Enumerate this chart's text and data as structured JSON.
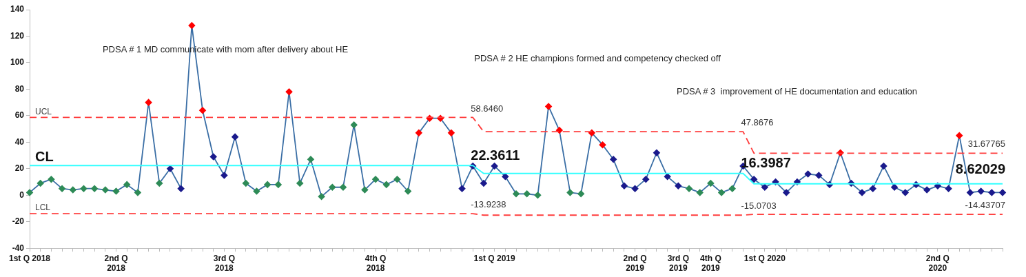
{
  "chart_data": {
    "type": "line",
    "ylim": [
      -40,
      140
    ],
    "yticks": [
      -40,
      -20,
      0,
      20,
      40,
      60,
      80,
      100,
      120,
      140
    ],
    "grid": false,
    "legend": false,
    "marker": "diamond",
    "categories": [
      "1st Q 2018",
      null,
      null,
      null,
      null,
      null,
      null,
      null,
      "2nd Q\n2018",
      null,
      null,
      null,
      null,
      null,
      null,
      null,
      null,
      null,
      "3rd Q\n2018",
      null,
      null,
      null,
      null,
      null,
      null,
      null,
      null,
      null,
      null,
      null,
      null,
      null,
      "4th Q\n2018",
      null,
      null,
      null,
      null,
      null,
      null,
      null,
      null,
      null,
      null,
      "1st Q 2019",
      null,
      null,
      null,
      null,
      null,
      null,
      null,
      null,
      null,
      null,
      null,
      null,
      "2nd Q\n2019",
      null,
      null,
      null,
      "3rd Q\n2019",
      null,
      null,
      "4th Q\n2019",
      null,
      null,
      null,
      null,
      "1st Q 2020",
      null,
      null,
      null,
      null,
      null,
      null,
      null,
      null,
      null,
      null,
      null,
      null,
      null,
      null,
      null,
      "2nd Q\n2020",
      null,
      null,
      null,
      null,
      null,
      null
    ],
    "annotations": [
      "PDSA # 1 MD communicate with mom after delivery about HE",
      "PDSA # 2 HE champions formed and competency checked off",
      "PDSA # 3  improvement of HE documentation and education"
    ],
    "series": [
      {
        "name": "UCL",
        "color": "#ff3b3b",
        "line_style": "dashed",
        "marker": "none",
        "values": [
          58.646,
          58.646,
          58.646,
          58.646,
          58.646,
          58.646,
          58.646,
          58.646,
          58.646,
          58.646,
          58.646,
          58.646,
          58.646,
          58.646,
          58.646,
          58.646,
          58.646,
          58.646,
          58.646,
          58.646,
          58.646,
          58.646,
          58.646,
          58.646,
          58.646,
          58.646,
          58.646,
          58.646,
          58.646,
          58.646,
          58.646,
          58.646,
          58.646,
          58.646,
          58.646,
          58.646,
          58.646,
          58.646,
          58.646,
          58.646,
          58.646,
          58.646,
          47.8676,
          47.8676,
          47.8676,
          47.8676,
          47.8676,
          47.8676,
          47.8676,
          47.8676,
          47.8676,
          47.8676,
          47.8676,
          47.8676,
          47.8676,
          47.8676,
          47.8676,
          47.8676,
          47.8676,
          47.8676,
          47.8676,
          47.8676,
          47.8676,
          47.8676,
          47.8676,
          47.8676,
          47.8676,
          31.67765,
          31.67765,
          31.67765,
          31.67765,
          31.67765,
          31.67765,
          31.67765,
          31.67765,
          31.67765,
          31.67765,
          31.67765,
          31.67765,
          31.67765,
          31.67765,
          31.67765,
          31.67765,
          31.67765,
          31.67765,
          31.67765,
          31.67765,
          31.67765,
          31.67765,
          31.67765,
          31.67765
        ],
        "value_labels": [
          null,
          null,
          null,
          null,
          null,
          null,
          null,
          null,
          null,
          null,
          null,
          null,
          null,
          null,
          null,
          null,
          null,
          null,
          null,
          null,
          null,
          null,
          null,
          null,
          null,
          null,
          null,
          null,
          null,
          null,
          null,
          null,
          null,
          null,
          null,
          null,
          null,
          null,
          null,
          null,
          null,
          "58.6460",
          null,
          null,
          null,
          null,
          null,
          null,
          null,
          null,
          null,
          null,
          null,
          null,
          null,
          null,
          null,
          null,
          null,
          null,
          null,
          null,
          null,
          null,
          null,
          null,
          "47.8676",
          null,
          null,
          null,
          null,
          null,
          null,
          null,
          null,
          null,
          null,
          null,
          null,
          null,
          null,
          null,
          null,
          null,
          null,
          null,
          null,
          null,
          null,
          null,
          "31.67765"
        ]
      },
      {
        "name": "CL",
        "color": "#33ffff",
        "line_style": "solid",
        "marker": "none",
        "values": [
          22.3611,
          22.3611,
          22.3611,
          22.3611,
          22.3611,
          22.3611,
          22.3611,
          22.3611,
          22.3611,
          22.3611,
          22.3611,
          22.3611,
          22.3611,
          22.3611,
          22.3611,
          22.3611,
          22.3611,
          22.3611,
          22.3611,
          22.3611,
          22.3611,
          22.3611,
          22.3611,
          22.3611,
          22.3611,
          22.3611,
          22.3611,
          22.3611,
          22.3611,
          22.3611,
          22.3611,
          22.3611,
          22.3611,
          22.3611,
          22.3611,
          22.3611,
          22.3611,
          22.3611,
          22.3611,
          22.3611,
          22.3611,
          22.3611,
          16.3987,
          16.3987,
          16.3987,
          16.3987,
          16.3987,
          16.3987,
          16.3987,
          16.3987,
          16.3987,
          16.3987,
          16.3987,
          16.3987,
          16.3987,
          16.3987,
          16.3987,
          16.3987,
          16.3987,
          16.3987,
          16.3987,
          16.3987,
          16.3987,
          16.3987,
          16.3987,
          16.3987,
          16.3987,
          8.62029,
          8.62029,
          8.62029,
          8.62029,
          8.62029,
          8.62029,
          8.62029,
          8.62029,
          8.62029,
          8.62029,
          8.62029,
          8.62029,
          8.62029,
          8.62029,
          8.62029,
          8.62029,
          8.62029,
          8.62029,
          8.62029,
          8.62029,
          8.62029,
          8.62029,
          8.62029,
          8.62029
        ],
        "value_labels": [
          null,
          null,
          null,
          null,
          null,
          null,
          null,
          null,
          null,
          null,
          null,
          null,
          null,
          null,
          null,
          null,
          null,
          null,
          null,
          null,
          null,
          null,
          null,
          null,
          null,
          null,
          null,
          null,
          null,
          null,
          null,
          null,
          null,
          null,
          null,
          null,
          null,
          null,
          null,
          null,
          null,
          "22.3611",
          null,
          null,
          null,
          null,
          null,
          null,
          null,
          null,
          null,
          null,
          null,
          null,
          null,
          null,
          null,
          null,
          null,
          null,
          null,
          null,
          null,
          null,
          null,
          null,
          "16.3987",
          null,
          null,
          null,
          null,
          null,
          null,
          null,
          null,
          null,
          null,
          null,
          null,
          null,
          null,
          null,
          null,
          null,
          null,
          null,
          null,
          null,
          null,
          null,
          "8.62029"
        ]
      },
      {
        "name": "LCL",
        "color": "#ff3b3b",
        "line_style": "dashed",
        "marker": "none",
        "values": [
          -13.9238,
          -13.9238,
          -13.9238,
          -13.9238,
          -13.9238,
          -13.9238,
          -13.9238,
          -13.9238,
          -13.9238,
          -13.9238,
          -13.9238,
          -13.9238,
          -13.9238,
          -13.9238,
          -13.9238,
          -13.9238,
          -13.9238,
          -13.9238,
          -13.9238,
          -13.9238,
          -13.9238,
          -13.9238,
          -13.9238,
          -13.9238,
          -13.9238,
          -13.9238,
          -13.9238,
          -13.9238,
          -13.9238,
          -13.9238,
          -13.9238,
          -13.9238,
          -13.9238,
          -13.9238,
          -13.9238,
          -13.9238,
          -13.9238,
          -13.9238,
          -13.9238,
          -13.9238,
          -13.9238,
          -13.9238,
          -15.0703,
          -15.0703,
          -15.0703,
          -15.0703,
          -15.0703,
          -15.0703,
          -15.0703,
          -15.0703,
          -15.0703,
          -15.0703,
          -15.0703,
          -15.0703,
          -15.0703,
          -15.0703,
          -15.0703,
          -15.0703,
          -15.0703,
          -15.0703,
          -15.0703,
          -15.0703,
          -15.0703,
          -15.0703,
          -15.0703,
          -15.0703,
          -15.0703,
          -14.43707,
          -14.43707,
          -14.43707,
          -14.43707,
          -14.43707,
          -14.43707,
          -14.43707,
          -14.43707,
          -14.43707,
          -14.43707,
          -14.43707,
          -14.43707,
          -14.43707,
          -14.43707,
          -14.43707,
          -14.43707,
          -14.43707,
          -14.43707,
          -14.43707,
          -14.43707,
          -14.43707,
          -14.43707,
          -14.43707,
          -14.43707
        ],
        "value_labels": [
          null,
          null,
          null,
          null,
          null,
          null,
          null,
          null,
          null,
          null,
          null,
          null,
          null,
          null,
          null,
          null,
          null,
          null,
          null,
          null,
          null,
          null,
          null,
          null,
          null,
          null,
          null,
          null,
          null,
          null,
          null,
          null,
          null,
          null,
          null,
          null,
          null,
          null,
          null,
          null,
          null,
          "-13.9238",
          null,
          null,
          null,
          null,
          null,
          null,
          null,
          null,
          null,
          null,
          null,
          null,
          null,
          null,
          null,
          null,
          null,
          null,
          null,
          null,
          null,
          null,
          null,
          null,
          "-15.0703",
          null,
          null,
          null,
          null,
          null,
          null,
          null,
          null,
          null,
          null,
          null,
          null,
          null,
          null,
          null,
          null,
          null,
          null,
          null,
          null,
          null,
          null,
          null,
          "-14.43707"
        ]
      },
      {
        "color": "#3a6ea5",
        "values": [
          2,
          9,
          12,
          5,
          4,
          5,
          5,
          4,
          3,
          8,
          2,
          70,
          9,
          20,
          5,
          128,
          64,
          29,
          15,
          44,
          9,
          3,
          8,
          8,
          78,
          9,
          27,
          -1,
          6,
          6,
          53,
          4,
          12,
          8,
          12,
          3,
          47,
          58,
          58,
          47,
          5,
          22,
          9,
          22,
          14,
          1,
          1,
          0,
          67,
          49,
          2,
          1,
          47,
          38,
          27,
          7,
          5,
          12,
          32,
          14,
          7,
          5,
          2,
          9,
          2,
          5,
          22,
          12,
          6,
          10,
          2,
          10,
          16,
          15,
          8,
          32,
          9,
          2,
          5,
          22,
          6,
          2,
          8,
          4,
          7,
          5,
          45,
          2,
          3,
          2,
          2
        ],
        "colors": [
          "#2e8b57",
          "#2e8b57",
          "#2e8b57",
          "#2e8b57",
          "#2e8b57",
          "#2e8b57",
          "#2e8b57",
          "#2e8b57",
          "#2e8b57",
          "#2e8b57",
          "#2e8b57",
          "#ff0000",
          "#2e8b57",
          "#1a1a8c",
          "#1a1a8c",
          "#ff0000",
          "#ff0000",
          "#1a1a8c",
          "#1a1a8c",
          "#1a1a8c",
          "#2e8b57",
          "#2e8b57",
          "#2e8b57",
          "#2e8b57",
          "#ff0000",
          "#2e8b57",
          "#2e8b57",
          "#2e8b57",
          "#2e8b57",
          "#2e8b57",
          "#2e8b57",
          "#2e8b57",
          "#2e8b57",
          "#2e8b57",
          "#2e8b57",
          "#2e8b57",
          "#ff0000",
          "#ff0000",
          "#ff0000",
          "#ff0000",
          "#1a1a8c",
          "#1a1a8c",
          "#1a1a8c",
          "#1a1a8c",
          "#1a1a8c",
          "#2e8b57",
          "#2e8b57",
          "#2e8b57",
          "#ff0000",
          "#ff0000",
          "#2e8b57",
          "#2e8b57",
          "#ff0000",
          "#ff0000",
          "#1a1a8c",
          "#1a1a8c",
          "#1a1a8c",
          "#1a1a8c",
          "#1a1a8c",
          "#1a1a8c",
          "#1a1a8c",
          "#2e8b57",
          "#2e8b57",
          "#2e8b57",
          "#2e8b57",
          "#2e8b57",
          "#1a1a8c",
          "#1a1a8c",
          "#1a1a8c",
          "#1a1a8c",
          "#1a1a8c",
          "#1a1a8c",
          "#1a1a8c",
          "#1a1a8c",
          "#1a1a8c",
          "#ff0000",
          "#1a1a8c",
          "#1a1a8c",
          "#1a1a8c",
          "#1a1a8c",
          "#1a1a8c",
          "#1a1a8c",
          "#1a1a8c",
          "#1a1a8c",
          "#1a1a8c",
          "#1a1a8c",
          "#ff0000",
          "#1a1a8c",
          "#1a1a8c",
          "#1a1a8c",
          "#1a1a8c"
        ]
      }
    ]
  }
}
